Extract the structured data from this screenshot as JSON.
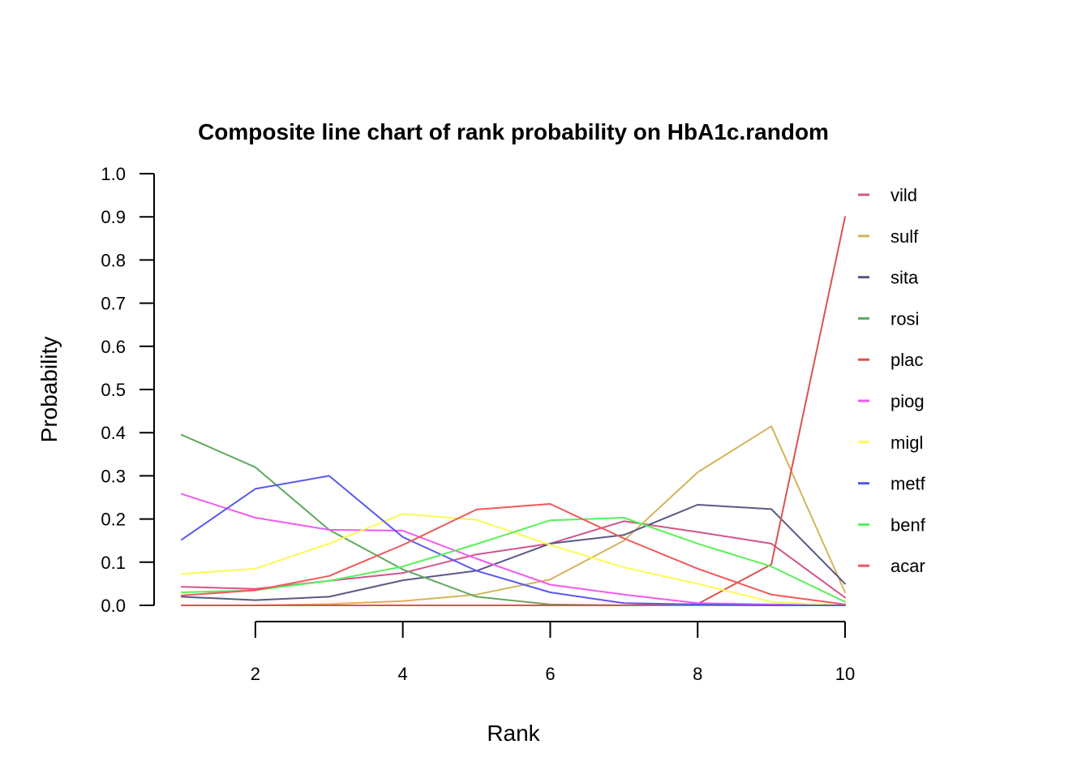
{
  "chart_data": {
    "type": "line",
    "title": "Composite line chart of rank probability on HbA1c.random",
    "xlabel": "Rank",
    "ylabel": "Probability",
    "x": [
      1,
      2,
      3,
      4,
      5,
      6,
      7,
      8,
      9,
      10
    ],
    "xlim": [
      1,
      10
    ],
    "ylim": [
      0,
      1
    ],
    "x_ticks": [
      2,
      4,
      6,
      8,
      10
    ],
    "y_ticks": [
      0.0,
      0.1,
      0.2,
      0.3,
      0.4,
      0.5,
      0.6,
      0.7,
      0.8,
      0.9,
      1.0
    ],
    "y_tick_labels": [
      "0.0",
      "0.1",
      "0.2",
      "0.3",
      "0.4",
      "0.5",
      "0.6",
      "0.7",
      "0.8",
      "0.9",
      "1.0"
    ],
    "x_tick_labels": [
      "2",
      "4",
      "6",
      "8",
      "10"
    ],
    "grid": false,
    "legend_position": "right",
    "series": [
      {
        "name": "vild",
        "color": "#D3548B",
        "values": [
          0.043,
          0.038,
          0.057,
          0.075,
          0.118,
          0.143,
          0.195,
          0.17,
          0.143,
          0.018
        ]
      },
      {
        "name": "sulf",
        "color": "#D4B45A",
        "values": [
          0.0,
          0.0,
          0.003,
          0.01,
          0.025,
          0.06,
          0.15,
          0.308,
          0.415,
          0.03
        ]
      },
      {
        "name": "sita",
        "color": "#595986",
        "values": [
          0.02,
          0.012,
          0.02,
          0.058,
          0.08,
          0.143,
          0.163,
          0.233,
          0.223,
          0.05
        ]
      },
      {
        "name": "rosi",
        "color": "#5EAA5E",
        "values": [
          0.395,
          0.32,
          0.175,
          0.083,
          0.02,
          0.002,
          0.0,
          0.0,
          0.0,
          0.0
        ]
      },
      {
        "name": "plac",
        "color": "#D9534E",
        "values": [
          0.0,
          0.0,
          0.0,
          0.0,
          0.0,
          0.0,
          0.0,
          0.003,
          0.095,
          0.9
        ]
      },
      {
        "name": "piog",
        "color": "#F159F1",
        "values": [
          0.258,
          0.203,
          0.175,
          0.173,
          0.108,
          0.048,
          0.025,
          0.005,
          0.002,
          0.0
        ]
      },
      {
        "name": "migl",
        "color": "#FBFB57",
        "values": [
          0.073,
          0.085,
          0.143,
          0.212,
          0.198,
          0.14,
          0.088,
          0.05,
          0.008,
          0.0
        ]
      },
      {
        "name": "metf",
        "color": "#5858F1",
        "values": [
          0.152,
          0.27,
          0.3,
          0.158,
          0.08,
          0.03,
          0.005,
          0.002,
          0.0,
          0.0
        ]
      },
      {
        "name": "benf",
        "color": "#58F158",
        "values": [
          0.03,
          0.035,
          0.057,
          0.09,
          0.142,
          0.197,
          0.203,
          0.143,
          0.09,
          0.008
        ]
      },
      {
        "name": "acar",
        "color": "#F15858",
        "values": [
          0.023,
          0.035,
          0.068,
          0.14,
          0.222,
          0.235,
          0.155,
          0.085,
          0.025,
          0.002
        ]
      }
    ]
  }
}
